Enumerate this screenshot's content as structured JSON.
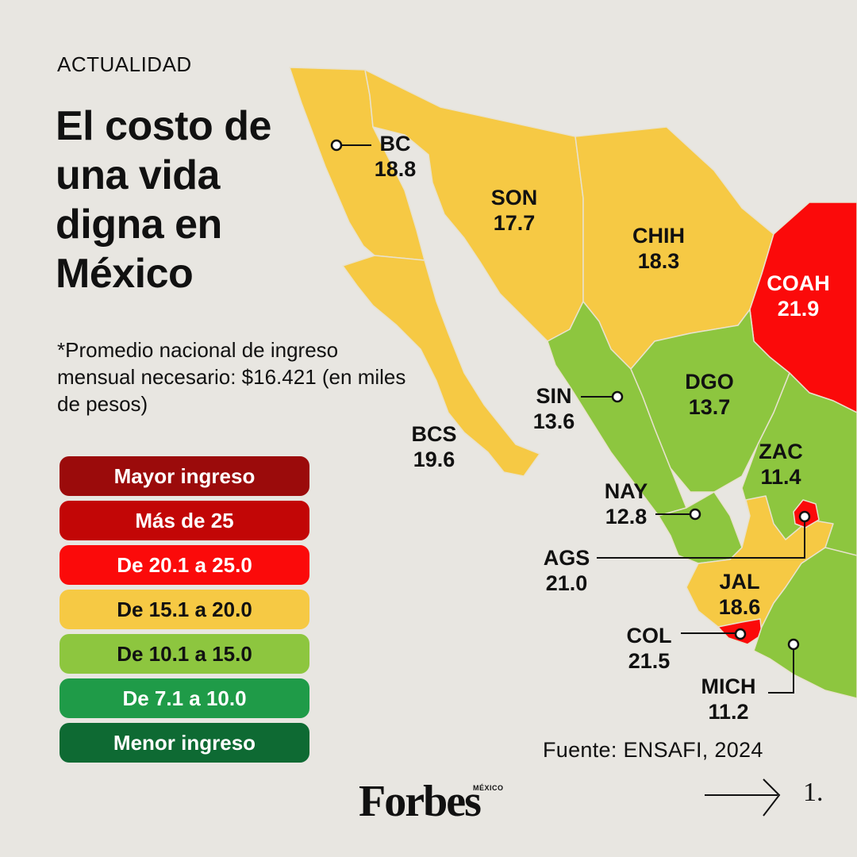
{
  "header": {
    "kicker": "ACTUALIDAD",
    "title": "El costo de una vida digna en México",
    "note": "*Promedio nacional de ingreso mensual necesario: $16.421 (en miles de pesos)"
  },
  "legend": [
    {
      "label": "Mayor ingreso",
      "color": "#9b0b0b"
    },
    {
      "label": "Más de 25",
      "color": "#c20606"
    },
    {
      "label": "De 20.1 a 25.0",
      "color": "#fb0a0a"
    },
    {
      "label": "De 15.1 a 20.0",
      "color": "#f6c944"
    },
    {
      "label": "De 10.1 a 15.0",
      "color": "#8dc63f"
    },
    {
      "label": "De 7.1 a 10.0",
      "color": "#1f9b48"
    },
    {
      "label": "Menor ingreso",
      "color": "#0e6a33"
    }
  ],
  "states": [
    {
      "code": "BC",
      "value": "18.8"
    },
    {
      "code": "SON",
      "value": "17.7"
    },
    {
      "code": "CHIH",
      "value": "18.3"
    },
    {
      "code": "COAH",
      "value": "21.9"
    },
    {
      "code": "BCS",
      "value": "19.6"
    },
    {
      "code": "SIN",
      "value": "13.6"
    },
    {
      "code": "DGO",
      "value": "13.7"
    },
    {
      "code": "ZAC",
      "value": "11.4"
    },
    {
      "code": "NAY",
      "value": "12.8"
    },
    {
      "code": "AGS",
      "value": "21.0"
    },
    {
      "code": "JAL",
      "value": "18.6"
    },
    {
      "code": "COL",
      "value": "21.5"
    },
    {
      "code": "MICH",
      "value": "11.2"
    }
  ],
  "footer": {
    "source": "Fuente: ENSAFI, 2024",
    "brand": "Forbes",
    "brand_sub": "MÉXICO",
    "page": "1."
  },
  "colors": {
    "background": "#e8e6e1",
    "yellow": "#f6c944",
    "green": "#8dc63f",
    "red": "#fb0a0a",
    "border": "#d9d3c4"
  }
}
